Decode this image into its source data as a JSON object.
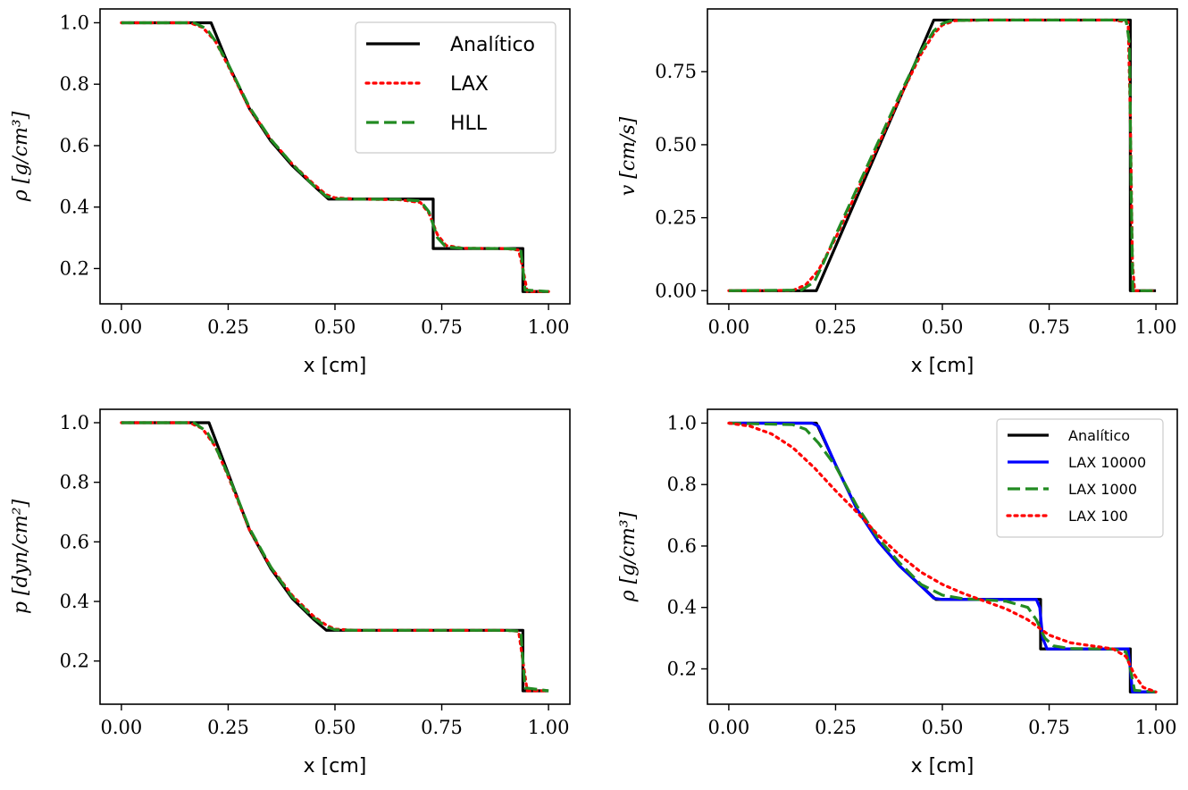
{
  "figure": {
    "background": "#ffffff"
  },
  "chart_data": [
    {
      "type": "line",
      "xlabel": "x [cm]",
      "ylabel": "ρ [g/cm³]",
      "xlim": [
        -0.05,
        1.05
      ],
      "ylim": [
        0.085,
        1.045
      ],
      "xticks": [
        "0.00",
        "0.25",
        "0.50",
        "0.75",
        "1.00"
      ],
      "xtick_values": [
        0,
        0.25,
        0.5,
        0.75,
        1.0
      ],
      "yticks": [
        "0.2",
        "0.4",
        "0.6",
        "0.8",
        "1.0"
      ],
      "ytick_values": [
        0.2,
        0.4,
        0.6,
        0.8,
        1.0
      ],
      "legend": "top-right",
      "legend_size": "large",
      "series": [
        {
          "name": "Analítico",
          "color": "#000000",
          "style": "solid",
          "x": [
            0,
            0.2,
            0.21,
            0.25,
            0.3,
            0.35,
            0.4,
            0.45,
            0.485,
            0.6,
            0.73,
            0.73,
            0.94,
            0.94,
            1.0
          ],
          "y": [
            1.0,
            1.0,
            1.0,
            0.865,
            0.72,
            0.615,
            0.535,
            0.47,
            0.426,
            0.426,
            0.426,
            0.265,
            0.265,
            0.125,
            0.125
          ]
        },
        {
          "name": "LAX",
          "color": "#ff0000",
          "style": "dotted",
          "x": [
            0,
            0.16,
            0.19,
            0.22,
            0.25,
            0.3,
            0.35,
            0.4,
            0.45,
            0.48,
            0.5,
            0.55,
            0.6,
            0.65,
            0.7,
            0.72,
            0.74,
            0.76,
            0.8,
            0.9,
            0.93,
            0.94,
            0.95,
            1.0
          ],
          "y": [
            1.0,
            1.0,
            0.985,
            0.94,
            0.86,
            0.72,
            0.62,
            0.54,
            0.475,
            0.44,
            0.43,
            0.426,
            0.425,
            0.424,
            0.415,
            0.38,
            0.31,
            0.275,
            0.266,
            0.265,
            0.26,
            0.2,
            0.125,
            0.125
          ]
        },
        {
          "name": "HLL",
          "color": "#228b22",
          "style": "dashed",
          "x": [
            0,
            0.17,
            0.2,
            0.22,
            0.25,
            0.3,
            0.35,
            0.4,
            0.45,
            0.48,
            0.5,
            0.55,
            0.65,
            0.7,
            0.72,
            0.74,
            0.76,
            0.8,
            0.9,
            0.935,
            0.94,
            0.945,
            1.0
          ],
          "y": [
            1.0,
            1.0,
            0.98,
            0.94,
            0.865,
            0.725,
            0.62,
            0.54,
            0.47,
            0.435,
            0.427,
            0.426,
            0.425,
            0.42,
            0.385,
            0.3,
            0.27,
            0.266,
            0.265,
            0.262,
            0.2,
            0.13,
            0.125
          ]
        }
      ]
    },
    {
      "type": "line",
      "xlabel": "x [cm]",
      "ylabel": "v [cm/s]",
      "xlim": [
        -0.05,
        1.05
      ],
      "ylim": [
        -0.045,
        0.965
      ],
      "xticks": [
        "0.00",
        "0.25",
        "0.50",
        "0.75",
        "1.00"
      ],
      "xtick_values": [
        0,
        0.25,
        0.5,
        0.75,
        1.0
      ],
      "yticks": [
        "0.00",
        "0.25",
        "0.50",
        "0.75"
      ],
      "ytick_values": [
        0,
        0.25,
        0.5,
        0.75
      ],
      "legend": "none",
      "series": [
        {
          "color": "#000000",
          "style": "solid",
          "x": [
            0,
            0.205,
            0.48,
            0.94,
            0.94,
            1.0
          ],
          "y": [
            0,
            0,
            0.927,
            0.927,
            0,
            0
          ]
        },
        {
          "color": "#ff0000",
          "style": "dotted",
          "x": [
            0,
            0.15,
            0.18,
            0.21,
            0.25,
            0.3,
            0.35,
            0.4,
            0.45,
            0.48,
            0.5,
            0.53,
            0.6,
            0.9,
            0.935,
            0.94,
            0.945,
            0.95,
            1.0
          ],
          "y": [
            0,
            0.001,
            0.02,
            0.07,
            0.18,
            0.34,
            0.5,
            0.66,
            0.81,
            0.88,
            0.91,
            0.925,
            0.927,
            0.927,
            0.92,
            0.6,
            0.1,
            0,
            0
          ]
        },
        {
          "color": "#228b22",
          "style": "dashed",
          "x": [
            0,
            0.17,
            0.2,
            0.22,
            0.25,
            0.3,
            0.35,
            0.4,
            0.45,
            0.48,
            0.5,
            0.52,
            0.6,
            0.93,
            0.938,
            0.942,
            0.946,
            1.0
          ],
          "y": [
            0,
            0.002,
            0.03,
            0.09,
            0.19,
            0.35,
            0.51,
            0.67,
            0.82,
            0.89,
            0.915,
            0.925,
            0.927,
            0.927,
            0.85,
            0.35,
            0,
            0
          ]
        }
      ]
    },
    {
      "type": "line",
      "xlabel": "x [cm]",
      "ylabel": "p [dyn/cm²]",
      "xlim": [
        -0.05,
        1.05
      ],
      "ylim": [
        0.055,
        1.045
      ],
      "xticks": [
        "0.00",
        "0.25",
        "0.50",
        "0.75",
        "1.00"
      ],
      "xtick_values": [
        0,
        0.25,
        0.5,
        0.75,
        1.0
      ],
      "yticks": [
        "0.2",
        "0.4",
        "0.6",
        "0.8",
        "1.0"
      ],
      "ytick_values": [
        0.2,
        0.4,
        0.6,
        0.8,
        1.0
      ],
      "legend": "none",
      "series": [
        {
          "color": "#000000",
          "style": "solid",
          "x": [
            0,
            0.205,
            0.25,
            0.3,
            0.35,
            0.4,
            0.45,
            0.48,
            0.94,
            0.94,
            1.0
          ],
          "y": [
            1.0,
            1.0,
            0.83,
            0.64,
            0.51,
            0.41,
            0.34,
            0.303,
            0.303,
            0.1,
            0.1
          ]
        },
        {
          "color": "#ff0000",
          "style": "dotted",
          "x": [
            0,
            0.16,
            0.19,
            0.22,
            0.25,
            0.3,
            0.35,
            0.4,
            0.45,
            0.48,
            0.5,
            0.55,
            0.9,
            0.93,
            0.94,
            0.95,
            1.0
          ],
          "y": [
            1.0,
            1.0,
            0.98,
            0.92,
            0.82,
            0.64,
            0.515,
            0.42,
            0.35,
            0.32,
            0.307,
            0.303,
            0.303,
            0.3,
            0.2,
            0.1,
            0.1
          ]
        },
        {
          "color": "#228b22",
          "style": "dashed",
          "x": [
            0,
            0.17,
            0.2,
            0.22,
            0.25,
            0.3,
            0.35,
            0.4,
            0.45,
            0.48,
            0.5,
            0.55,
            0.9,
            0.935,
            0.94,
            0.945,
            1.0
          ],
          "y": [
            1.0,
            1.0,
            0.97,
            0.92,
            0.825,
            0.645,
            0.515,
            0.415,
            0.345,
            0.315,
            0.305,
            0.303,
            0.303,
            0.3,
            0.2,
            0.11,
            0.1
          ]
        }
      ]
    },
    {
      "type": "line",
      "xlabel": "x [cm]",
      "ylabel": "ρ [g/cm³]",
      "xlim": [
        -0.05,
        1.05
      ],
      "ylim": [
        0.085,
        1.045
      ],
      "xticks": [
        "0.00",
        "0.25",
        "0.50",
        "0.75",
        "1.00"
      ],
      "xtick_values": [
        0,
        0.25,
        0.5,
        0.75,
        1.0
      ],
      "yticks": [
        "0.2",
        "0.4",
        "0.6",
        "0.8",
        "1.0"
      ],
      "ytick_values": [
        0.2,
        0.4,
        0.6,
        0.8,
        1.0
      ],
      "legend": "top-right",
      "legend_size": "small",
      "series": [
        {
          "name": "Analítico",
          "color": "#000000",
          "style": "solid",
          "x": [
            0,
            0.205,
            0.25,
            0.3,
            0.35,
            0.4,
            0.45,
            0.485,
            0.73,
            0.73,
            0.94,
            0.94,
            1.0
          ],
          "y": [
            1.0,
            1.0,
            0.865,
            0.72,
            0.615,
            0.535,
            0.47,
            0.426,
            0.426,
            0.265,
            0.265,
            0.125,
            0.125
          ]
        },
        {
          "name": "LAX 10000",
          "color": "#0000ff",
          "style": "solid",
          "x": [
            0,
            0.195,
            0.21,
            0.25,
            0.3,
            0.35,
            0.4,
            0.45,
            0.48,
            0.5,
            0.72,
            0.728,
            0.735,
            0.745,
            0.935,
            0.94,
            0.945,
            1.0
          ],
          "y": [
            1.0,
            1.0,
            0.99,
            0.865,
            0.72,
            0.615,
            0.535,
            0.47,
            0.43,
            0.426,
            0.426,
            0.4,
            0.3,
            0.265,
            0.265,
            0.2,
            0.125,
            0.125
          ]
        },
        {
          "name": "LAX 1000",
          "color": "#228b22",
          "style": "dashed",
          "x": [
            0,
            0.15,
            0.18,
            0.21,
            0.25,
            0.3,
            0.35,
            0.4,
            0.45,
            0.5,
            0.55,
            0.6,
            0.65,
            0.7,
            0.72,
            0.74,
            0.76,
            0.8,
            0.9,
            0.93,
            0.94,
            0.95,
            1.0
          ],
          "y": [
            1.0,
            0.995,
            0.98,
            0.935,
            0.86,
            0.73,
            0.625,
            0.545,
            0.475,
            0.44,
            0.428,
            0.425,
            0.42,
            0.4,
            0.36,
            0.3,
            0.275,
            0.266,
            0.265,
            0.255,
            0.2,
            0.13,
            0.125
          ]
        },
        {
          "name": "LAX 100",
          "color": "#ff0000",
          "style": "dotted",
          "x": [
            0,
            0.05,
            0.1,
            0.15,
            0.2,
            0.25,
            0.3,
            0.35,
            0.4,
            0.45,
            0.5,
            0.55,
            0.6,
            0.65,
            0.7,
            0.75,
            0.8,
            0.85,
            0.9,
            0.93,
            0.95,
            0.97,
            1.0
          ],
          "y": [
            1.0,
            0.99,
            0.965,
            0.92,
            0.855,
            0.78,
            0.71,
            0.635,
            0.57,
            0.515,
            0.475,
            0.445,
            0.42,
            0.395,
            0.36,
            0.31,
            0.285,
            0.275,
            0.265,
            0.24,
            0.18,
            0.14,
            0.125
          ]
        }
      ]
    }
  ]
}
